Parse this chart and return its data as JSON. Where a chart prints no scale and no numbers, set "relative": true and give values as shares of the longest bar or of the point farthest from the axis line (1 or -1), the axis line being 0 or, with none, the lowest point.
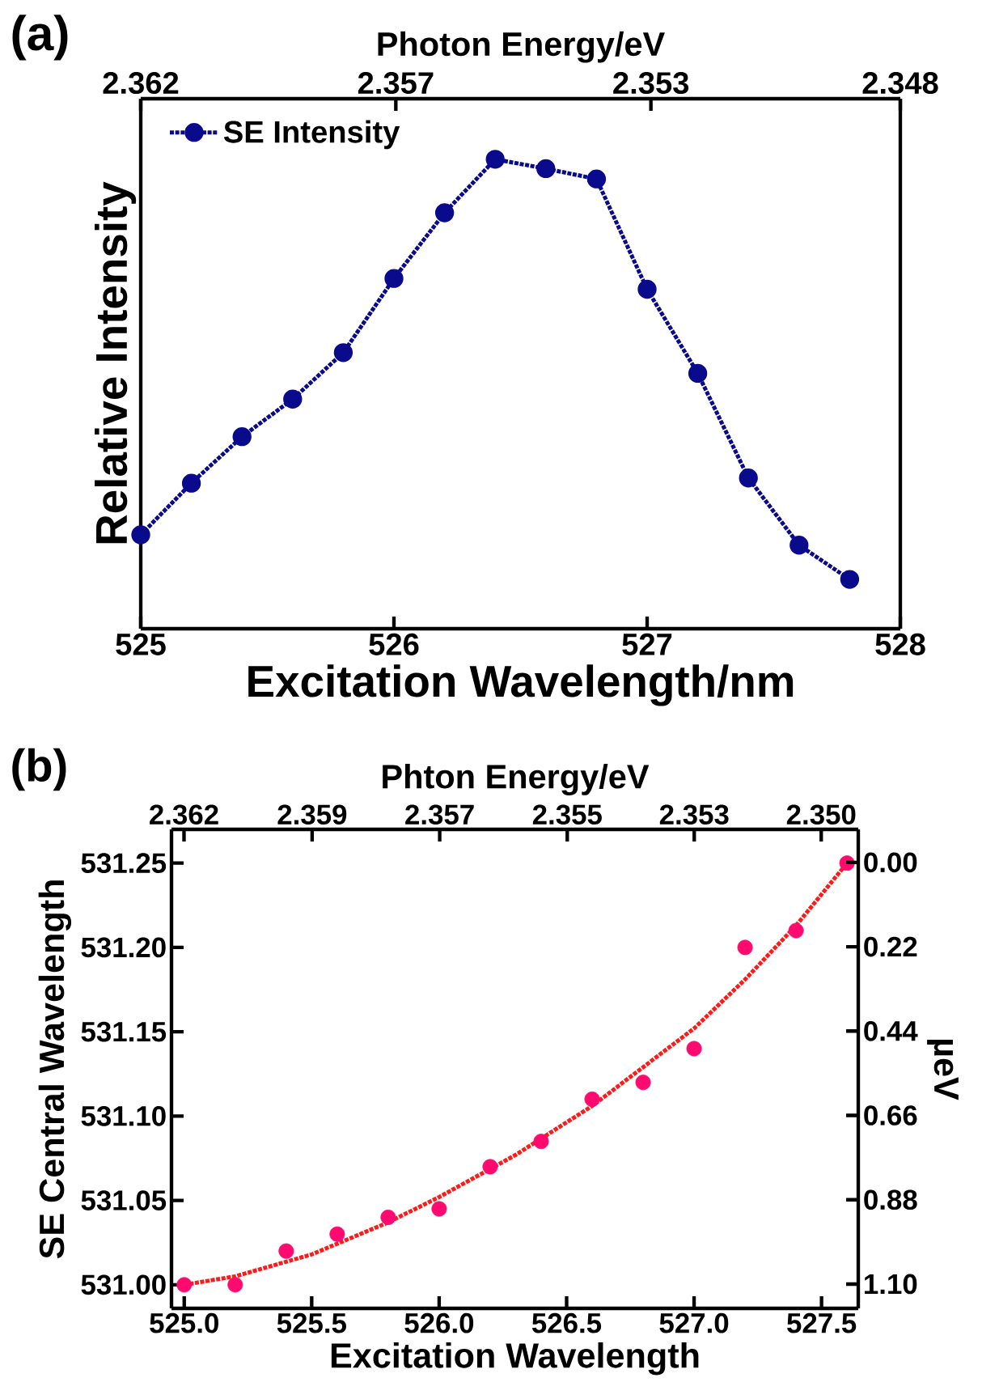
{
  "chart_data": [
    {
      "type": "line",
      "relative": true,
      "xlabel": "Excitation Wavelength/nm",
      "ylabel": "Relative Intensity",
      "x2label": "Photon Energy/eV",
      "x": [
        525.0,
        525.2,
        525.4,
        525.6,
        525.8,
        526.0,
        526.2,
        526.4,
        526.6,
        526.8,
        527.0,
        527.2,
        527.4,
        527.6,
        527.8
      ],
      "xlim": [
        525,
        528
      ],
      "xticks": [
        525,
        526,
        527,
        528
      ],
      "x2lim": [
        2.3616,
        2.3482
      ],
      "x2ticks": [
        {
          "value": 2.3616,
          "label": "2.362"
        },
        {
          "value": 2.3571,
          "label": "2.357"
        },
        {
          "value": 2.3526,
          "label": "2.353"
        },
        {
          "value": 2.3482,
          "label": "2.348"
        }
      ],
      "series": [
        {
          "name": "SE Intensity",
          "color": "#0a0a8c",
          "values": [
            0.2,
            0.31,
            0.409,
            0.489,
            0.588,
            0.746,
            0.886,
            1.0,
            0.98,
            0.958,
            0.723,
            0.544,
            0.321,
            0.178,
            0.105
          ]
        }
      ],
      "marker": "circle",
      "line_style": "dotted",
      "legend": "top left",
      "annotations": [
        "(a)"
      ]
    },
    {
      "type": "scatter",
      "xlabel": "Excitation Wavelength",
      "ylabel": "SE Central Wavelength",
      "y2label": "µeV",
      "x2label": "Phton Energy/eV",
      "x": [
        525.0,
        525.2,
        525.4,
        525.6,
        525.8,
        526.0,
        526.2,
        526.4,
        526.6,
        526.8,
        527.0,
        527.2,
        527.4,
        527.6
      ],
      "xlim": [
        524.95,
        527.644
      ],
      "xticks": [
        {
          "value": 525,
          "label": "525.0"
        },
        {
          "value": 525.5,
          "label": "525.5"
        },
        {
          "value": 526,
          "label": "526.0"
        },
        {
          "value": 526.5,
          "label": "526.5"
        },
        {
          "value": 527,
          "label": "527.0"
        },
        {
          "value": 527.5,
          "label": "527.5"
        }
      ],
      "ylim": [
        530.986,
        531.27
      ],
      "yticks": [
        {
          "value": 531.0,
          "label": "531.00"
        },
        {
          "value": 531.05,
          "label": "531.05"
        },
        {
          "value": 531.1,
          "label": "531.10"
        },
        {
          "value": 531.15,
          "label": "531.15"
        },
        {
          "value": 531.2,
          "label": "531.20"
        },
        {
          "value": 531.25,
          "label": "531.25"
        }
      ],
      "y2lim": [
        1.1634,
        -0.0862
      ],
      "y2ticks": [
        {
          "value": 0,
          "label": "0.00"
        },
        {
          "value": 0.22,
          "label": "0.22"
        },
        {
          "value": 0.44,
          "label": "0.44"
        },
        {
          "value": 0.66,
          "label": "0.66"
        },
        {
          "value": 0.88,
          "label": "0.88"
        },
        {
          "value": 1.1,
          "label": "1.10"
        }
      ],
      "x2lim": [
        2.36182,
        2.34976
      ],
      "x2ticks": [
        {
          "value": 2.3616,
          "label": "2.362"
        },
        {
          "value": 2.35935,
          "label": "2.359"
        },
        {
          "value": 2.35711,
          "label": "2.357"
        },
        {
          "value": 2.35487,
          "label": "2.355"
        },
        {
          "value": 2.35264,
          "label": "2.353"
        },
        {
          "value": 2.35041,
          "label": "2.350"
        }
      ],
      "series": [
        {
          "color": "#ff0a6e",
          "values": [
            531.0,
            531.0,
            531.02,
            531.03,
            531.04,
            531.045,
            531.07,
            531.085,
            531.11,
            531.12,
            531.14,
            531.2,
            531.21,
            531.25
          ]
        },
        {
          "type": "line",
          "color": "#ff1a1a",
          "marker": "none",
          "line_style": "dotted",
          "x": [
            525.0,
            525.2,
            525.5,
            525.8,
            526.0,
            526.3,
            526.6,
            527.0,
            527.2,
            527.4,
            527.6
          ],
          "values": [
            531.0,
            531.005,
            531.018,
            531.037,
            531.052,
            531.077,
            531.106,
            531.152,
            531.181,
            531.213,
            531.25
          ]
        }
      ],
      "marker": "circle",
      "annotations": [
        "(b)"
      ]
    }
  ]
}
